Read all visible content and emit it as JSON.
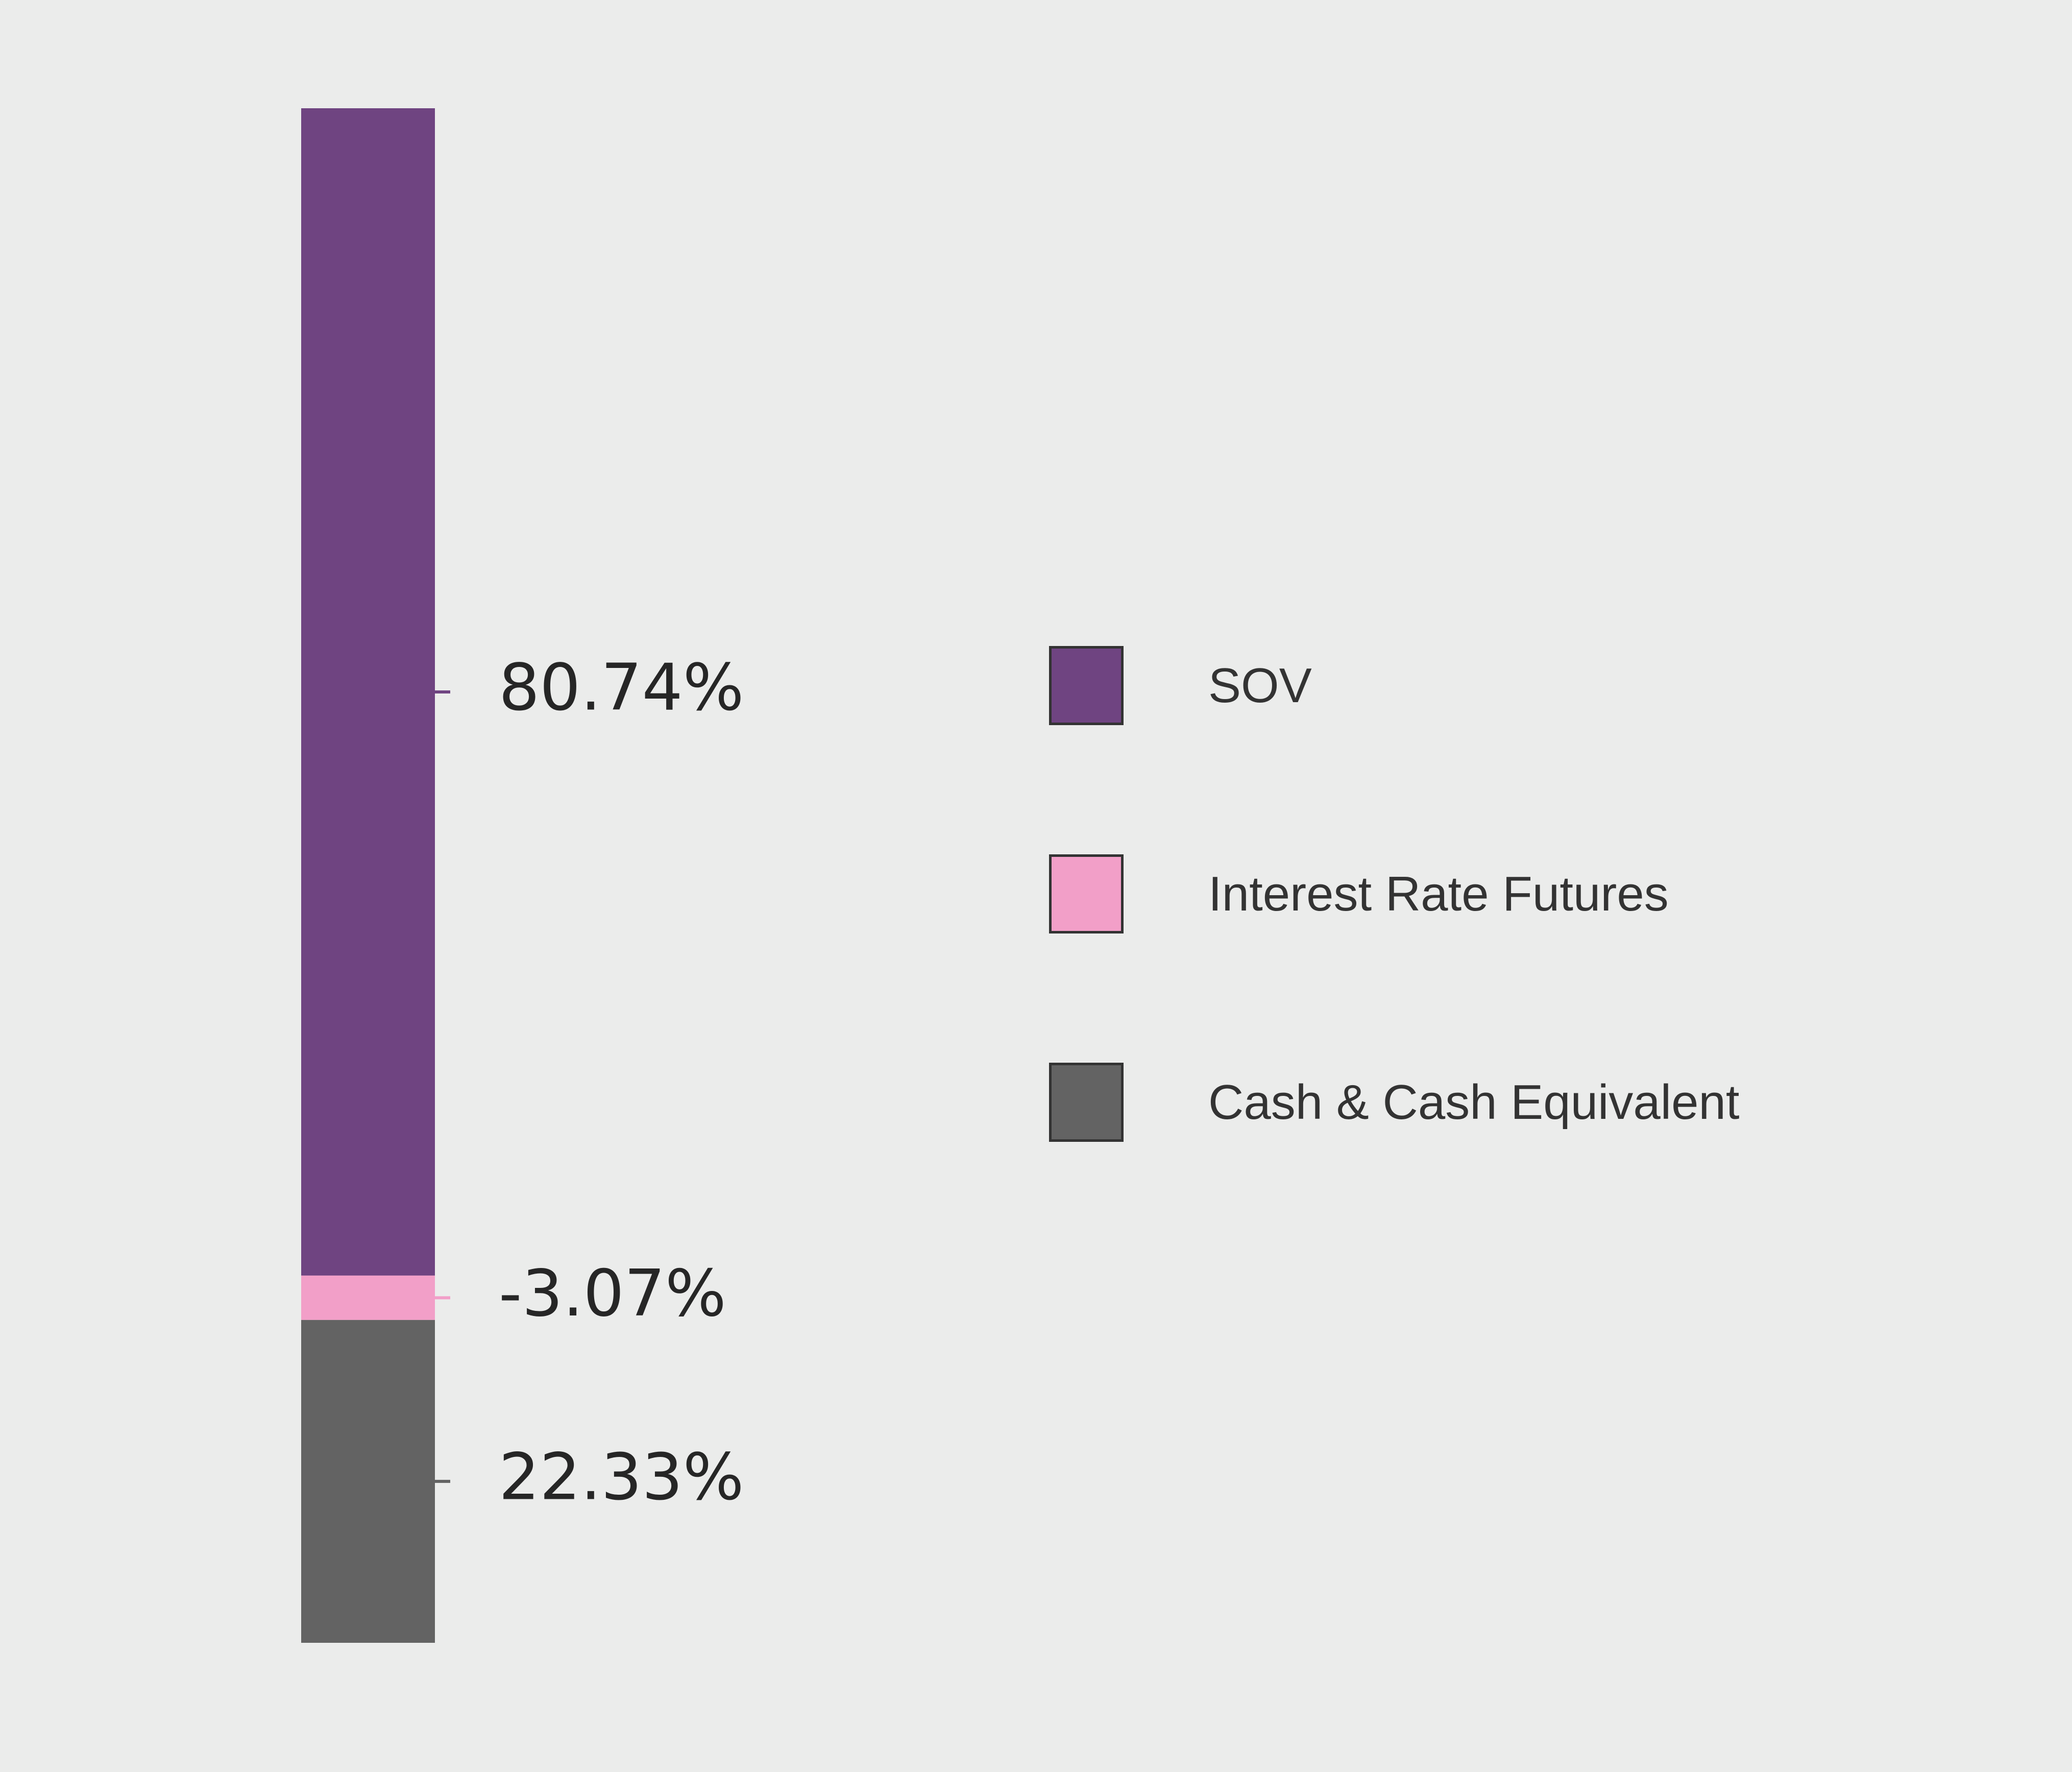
{
  "chart_data": {
    "type": "bar",
    "stacked": true,
    "orientation": "vertical",
    "categories": [
      ""
    ],
    "series": [
      {
        "name": "SOV",
        "value": 80.74,
        "label": "80.74%",
        "color": "#6f4481"
      },
      {
        "name": "Interest Rate Futures",
        "value": -3.07,
        "label": "-3.07%",
        "color": "#f29fc8"
      },
      {
        "name": "Cash & Cash Equivalent",
        "value": 22.33,
        "label": "22.33%",
        "color": "#636363"
      }
    ],
    "legend": {
      "placement": "right",
      "items": [
        {
          "label": "SOV",
          "color": "#6f4481"
        },
        {
          "label": "Interest Rate Futures",
          "color": "#f29fc8"
        },
        {
          "label": "Cash & Cash Equivalent",
          "color": "#636363"
        }
      ]
    },
    "grid": false,
    "title": "",
    "xlabel": "",
    "ylabel": ""
  },
  "colors": {
    "background": "#ebeceb",
    "text": "#262626",
    "legend_text": "#333333",
    "swatch_border": "#333333"
  }
}
